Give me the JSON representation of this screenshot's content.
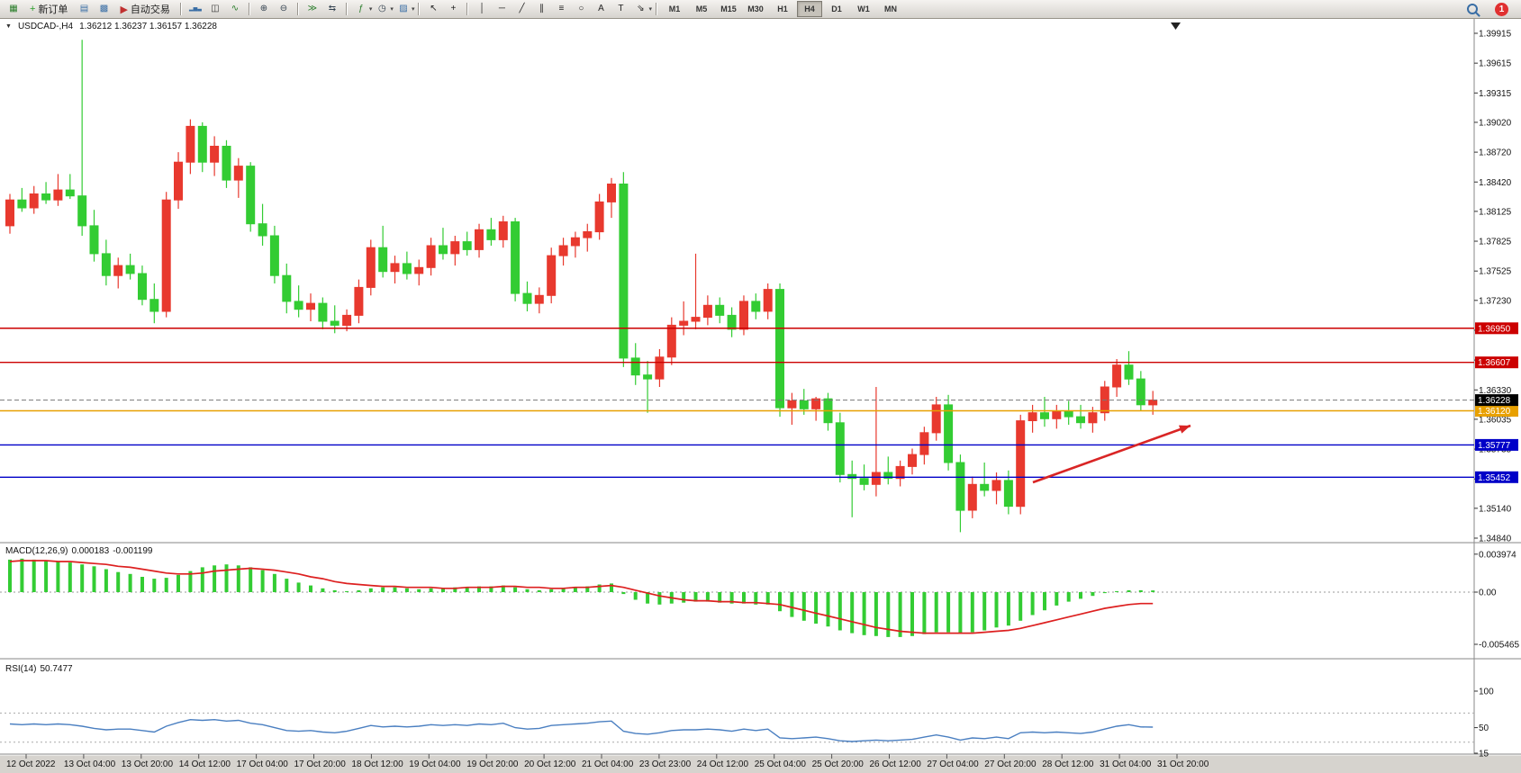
{
  "toolbar": {
    "new_order_label": "新订单",
    "autotrade_label": "自动交易",
    "notification_count": "1",
    "timeframes": [
      "M1",
      "M5",
      "M15",
      "M30",
      "H1",
      "H4",
      "D1",
      "W1",
      "MN"
    ],
    "active_timeframe": "H4",
    "items": [
      {
        "t": "i",
        "name": "new-chart-icon",
        "glyph": "▦",
        "c": "#2a7d2a"
      },
      {
        "t": "b",
        "name": "new-order-button",
        "glyph": "+",
        "gc": "#2a9d2a",
        "label_key": "new_order_label"
      },
      {
        "t": "i",
        "name": "profiles-icon",
        "glyph": "▤",
        "c": "#3a6ea5"
      },
      {
        "t": "i",
        "name": "charts-cascade-icon",
        "glyph": "▩",
        "c": "#3a6ea5"
      },
      {
        "t": "b",
        "name": "autotrade-button",
        "glyph": "▶",
        "gc": "#c03030",
        "label_key": "autotrade_label"
      },
      {
        "t": "s"
      },
      {
        "t": "i",
        "name": "bars-chart-icon",
        "glyph": "▂▅▃",
        "c": "#3a6ea5"
      },
      {
        "t": "i",
        "name": "candlestick-chart-icon",
        "glyph": "◫",
        "c": "#333333"
      },
      {
        "t": "i",
        "name": "line-chart-icon",
        "glyph": "∿",
        "c": "#2a7d2a"
      },
      {
        "t": "s"
      },
      {
        "t": "i",
        "name": "zoom-in-icon",
        "glyph": "⊕",
        "c": "#33414f"
      },
      {
        "t": "i",
        "name": "zoom-out-icon",
        "glyph": "⊖",
        "c": "#33414f"
      },
      {
        "t": "s"
      },
      {
        "t": "i",
        "name": "auto-scroll-icon",
        "glyph": "≫",
        "c": "#2a7d2a"
      },
      {
        "t": "i",
        "name": "chart-shift-icon",
        "glyph": "⇆",
        "c": "#33414f"
      },
      {
        "t": "s"
      },
      {
        "t": "i",
        "name": "indicators-icon",
        "glyph": "ƒ",
        "c": "#2a7d2a"
      },
      {
        "t": "c",
        "name": "indicators-caret-icon",
        "glyph": "▾"
      },
      {
        "t": "i",
        "name": "periods-icon",
        "glyph": "◷",
        "c": "#33414f"
      },
      {
        "t": "c",
        "name": "periods-caret-icon",
        "glyph": "▾"
      },
      {
        "t": "i",
        "name": "templates-icon",
        "glyph": "▨",
        "c": "#3a6ea5"
      },
      {
        "t": "c",
        "name": "templates-caret-icon",
        "glyph": "▾"
      },
      {
        "t": "s"
      },
      {
        "t": "i",
        "name": "cursor-icon",
        "glyph": "↖",
        "c": "#222222"
      },
      {
        "t": "i",
        "name": "crosshair-icon",
        "glyph": "+",
        "c": "#222222"
      },
      {
        "t": "s"
      },
      {
        "t": "i",
        "name": "vertical-line-icon",
        "glyph": "│",
        "c": "#222222"
      },
      {
        "t": "i",
        "name": "horizontal-line-icon",
        "glyph": "─",
        "c": "#222222"
      },
      {
        "t": "i",
        "name": "trendline-icon",
        "glyph": "╱",
        "c": "#222222"
      },
      {
        "t": "i",
        "name": "channel-icon",
        "glyph": "∥",
        "c": "#222222"
      },
      {
        "t": "i",
        "name": "fibonacci-icon",
        "glyph": "≡",
        "c": "#222222"
      },
      {
        "t": "i",
        "name": "shapes-icon",
        "glyph": "○",
        "c": "#222222"
      },
      {
        "t": "i",
        "name": "text-icon",
        "glyph": "A",
        "c": "#222222"
      },
      {
        "t": "i",
        "name": "label-icon",
        "glyph": "T",
        "c": "#222222"
      },
      {
        "t": "i",
        "name": "arrows-icon",
        "glyph": "⇘",
        "c": "#222222"
      },
      {
        "t": "c",
        "name": "arrows-caret-icon",
        "glyph": "▾"
      },
      {
        "t": "s"
      }
    ]
  },
  "chart_header": {
    "collapse_glyph": "▼",
    "symbol_period": "USDCAD-,H4",
    "ohlc": "1.36212 1.36237 1.36157 1.36228"
  },
  "chart_data": [
    {
      "type": "candlestick",
      "symbol": "USDCAD-",
      "timeframe": "H4",
      "bull_color": "#e8392e",
      "bear_color": "#33cc33",
      "ylim": [
        1.3484,
        1.39915
      ],
      "price_axis": [
        "1.39915",
        "1.39615",
        "1.39315",
        "1.39020",
        "1.38720",
        "1.38420",
        "1.38125",
        "1.37825",
        "1.37525",
        "1.37230",
        "1.36930",
        "1.36630",
        "1.36330",
        "1.36035",
        "1.35735",
        "1.35435",
        "1.35140",
        "1.34840"
      ],
      "time_axis": [
        "12 Oct 2022",
        "13 Oct 04:00",
        "13 Oct 20:00",
        "14 Oct 12:00",
        "17 Oct 04:00",
        "17 Oct 20:00",
        "18 Oct 12:00",
        "19 Oct 04:00",
        "19 Oct 20:00",
        "20 Oct 12:00",
        "21 Oct 04:00",
        "23 Oct 23:00",
        "24 Oct 12:00",
        "25 Oct 04:00",
        "25 Oct 20:00",
        "26 Oct 12:00",
        "27 Oct 04:00",
        "27 Oct 20:00",
        "28 Oct 12:00",
        "31 Oct 04:00",
        "31 Oct 20:00"
      ],
      "hlines": [
        {
          "value": 1.3695,
          "label": "1.36950",
          "color": "#cc0000"
        },
        {
          "value": 1.36607,
          "label": "1.36607",
          "color": "#cc0000"
        },
        {
          "value": 1.3612,
          "label": "1.36120",
          "color": "#e8a000"
        },
        {
          "value": 1.35777,
          "label": "1.35777",
          "color": "#0000c8"
        },
        {
          "value": 1.35452,
          "label": "1.35452",
          "color": "#0000c8"
        }
      ],
      "bid": {
        "value": 1.36228,
        "label": "1.36228",
        "line_color": "#777777",
        "badge_color": "#000000"
      },
      "arrow": {
        "from": [
          1147,
          515
        ],
        "to": [
          1322,
          452
        ],
        "color": "#d92525"
      },
      "candles": [
        [
          1.3798,
          1.383,
          1.379,
          1.3824
        ],
        [
          1.3824,
          1.3836,
          1.3812,
          1.3816
        ],
        [
          1.3816,
          1.3838,
          1.381,
          1.383
        ],
        [
          1.383,
          1.3842,
          1.382,
          1.3824
        ],
        [
          1.3824,
          1.385,
          1.3818,
          1.3834
        ],
        [
          1.3834,
          1.385,
          1.3825,
          1.3828
        ],
        [
          1.3828,
          1.3985,
          1.3788,
          1.3798
        ],
        [
          1.3798,
          1.3814,
          1.3762,
          1.377
        ],
        [
          1.377,
          1.3784,
          1.3738,
          1.3748
        ],
        [
          1.3748,
          1.3766,
          1.3735,
          1.3758
        ],
        [
          1.3758,
          1.377,
          1.3744,
          1.375
        ],
        [
          1.375,
          1.3758,
          1.3718,
          1.3724
        ],
        [
          1.3724,
          1.374,
          1.37,
          1.3712
        ],
        [
          1.3712,
          1.3832,
          1.3706,
          1.3824
        ],
        [
          1.3824,
          1.3872,
          1.3815,
          1.3862
        ],
        [
          1.3862,
          1.3905,
          1.385,
          1.3898
        ],
        [
          1.3898,
          1.3902,
          1.3852,
          1.3862
        ],
        [
          1.3862,
          1.3888,
          1.3848,
          1.3878
        ],
        [
          1.3878,
          1.3884,
          1.3836,
          1.3844
        ],
        [
          1.3844,
          1.3866,
          1.3826,
          1.3858
        ],
        [
          1.3858,
          1.3862,
          1.3792,
          1.38
        ],
        [
          1.38,
          1.382,
          1.3778,
          1.3788
        ],
        [
          1.3788,
          1.3798,
          1.374,
          1.3748
        ],
        [
          1.3748,
          1.376,
          1.371,
          1.3722
        ],
        [
          1.3722,
          1.3738,
          1.3706,
          1.3714
        ],
        [
          1.3714,
          1.373,
          1.3702,
          1.372
        ],
        [
          1.372,
          1.3726,
          1.3694,
          1.3702
        ],
        [
          1.3702,
          1.3718,
          1.369,
          1.3698
        ],
        [
          1.3698,
          1.3714,
          1.3692,
          1.3708
        ],
        [
          1.3708,
          1.3744,
          1.37,
          1.3736
        ],
        [
          1.3736,
          1.3784,
          1.3728,
          1.3776
        ],
        [
          1.3776,
          1.3798,
          1.3746,
          1.3752
        ],
        [
          1.3752,
          1.3768,
          1.374,
          1.376
        ],
        [
          1.376,
          1.3772,
          1.3744,
          1.375
        ],
        [
          1.375,
          1.3764,
          1.3738,
          1.3756
        ],
        [
          1.3756,
          1.3786,
          1.3748,
          1.3778
        ],
        [
          1.3778,
          1.3796,
          1.3764,
          1.377
        ],
        [
          1.377,
          1.3788,
          1.3758,
          1.3782
        ],
        [
          1.3782,
          1.3792,
          1.3768,
          1.3774
        ],
        [
          1.3774,
          1.38,
          1.3766,
          1.3794
        ],
        [
          1.3794,
          1.3806,
          1.3778,
          1.3784
        ],
        [
          1.3784,
          1.3808,
          1.3776,
          1.3802
        ],
        [
          1.3802,
          1.3806,
          1.3722,
          1.373
        ],
        [
          1.373,
          1.3742,
          1.3712,
          1.372
        ],
        [
          1.372,
          1.3736,
          1.371,
          1.3728
        ],
        [
          1.3728,
          1.3776,
          1.372,
          1.3768
        ],
        [
          1.3768,
          1.3786,
          1.3758,
          1.3778
        ],
        [
          1.3778,
          1.3792,
          1.3766,
          1.3786
        ],
        [
          1.3786,
          1.38,
          1.3772,
          1.3792
        ],
        [
          1.3792,
          1.383,
          1.3784,
          1.3822
        ],
        [
          1.3822,
          1.3846,
          1.3806,
          1.384
        ],
        [
          1.384,
          1.3852,
          1.3656,
          1.3665
        ],
        [
          1.3665,
          1.368,
          1.3638,
          1.3648
        ],
        [
          1.3648,
          1.3662,
          1.361,
          1.3644
        ],
        [
          1.3644,
          1.3674,
          1.3636,
          1.3666
        ],
        [
          1.3666,
          1.3706,
          1.3658,
          1.3698
        ],
        [
          1.3698,
          1.3722,
          1.3688,
          1.3702
        ],
        [
          1.3702,
          1.377,
          1.3694,
          1.3706
        ],
        [
          1.3706,
          1.3728,
          1.3698,
          1.3718
        ],
        [
          1.3718,
          1.3726,
          1.37,
          1.3708
        ],
        [
          1.3708,
          1.3716,
          1.3686,
          1.3694
        ],
        [
          1.3694,
          1.3728,
          1.3688,
          1.3722
        ],
        [
          1.3722,
          1.373,
          1.3704,
          1.3712
        ],
        [
          1.3712,
          1.374,
          1.3704,
          1.3734
        ],
        [
          1.3734,
          1.374,
          1.3606,
          1.3615
        ],
        [
          1.3615,
          1.363,
          1.3598,
          1.3622
        ],
        [
          1.3622,
          1.3634,
          1.3608,
          1.3614
        ],
        [
          1.3614,
          1.3626,
          1.3602,
          1.3624
        ],
        [
          1.3624,
          1.363,
          1.3592,
          1.36
        ],
        [
          1.36,
          1.361,
          1.354,
          1.3548
        ],
        [
          1.3548,
          1.3562,
          1.3505,
          1.3544
        ],
        [
          1.3544,
          1.3558,
          1.3532,
          1.3538
        ],
        [
          1.3538,
          1.3636,
          1.3526,
          1.355
        ],
        [
          1.355,
          1.3566,
          1.3538,
          1.3544
        ],
        [
          1.3544,
          1.3562,
          1.3536,
          1.3556
        ],
        [
          1.3556,
          1.3574,
          1.3548,
          1.3568
        ],
        [
          1.3568,
          1.3596,
          1.3558,
          1.359
        ],
        [
          1.359,
          1.3626,
          1.3582,
          1.3618
        ],
        [
          1.3618,
          1.3628,
          1.3552,
          1.356
        ],
        [
          1.356,
          1.3568,
          1.349,
          1.3512
        ],
        [
          1.3512,
          1.3546,
          1.3504,
          1.3538
        ],
        [
          1.3538,
          1.356,
          1.3526,
          1.3532
        ],
        [
          1.3532,
          1.355,
          1.3518,
          1.3542
        ],
        [
          1.3542,
          1.3552,
          1.3508,
          1.3516
        ],
        [
          1.3516,
          1.3608,
          1.3508,
          1.3602
        ],
        [
          1.3602,
          1.3618,
          1.359,
          1.361
        ],
        [
          1.361,
          1.3626,
          1.3596,
          1.3604
        ],
        [
          1.3604,
          1.3618,
          1.3594,
          1.3612
        ],
        [
          1.3612,
          1.3622,
          1.3598,
          1.3606
        ],
        [
          1.3606,
          1.3618,
          1.3594,
          1.36
        ],
        [
          1.36,
          1.3616,
          1.359,
          1.361
        ],
        [
          1.361,
          1.3642,
          1.3602,
          1.3636
        ],
        [
          1.3636,
          1.3664,
          1.3626,
          1.3658
        ],
        [
          1.3658,
          1.3672,
          1.3638,
          1.3644
        ],
        [
          1.3644,
          1.3652,
          1.3612,
          1.3618
        ],
        [
          1.3618,
          1.3632,
          1.3608,
          1.36228
        ]
      ]
    },
    {
      "type": "line",
      "name": "MACD",
      "label": "MACD(12,26,9)",
      "value_main": "0.000183",
      "value_signal": "-0.001199",
      "axis": [
        "0.003974",
        "0.00",
        "-0.005465"
      ],
      "histogram_color": "#33cc33",
      "signal_color": "#dd2020",
      "histogram": [
        0.0034,
        0.0035,
        0.0034,
        0.0033,
        0.0032,
        0.0031,
        0.0029,
        0.0027,
        0.0024,
        0.0021,
        0.0019,
        0.0016,
        0.0014,
        0.0015,
        0.0018,
        0.0022,
        0.0026,
        0.0028,
        0.0029,
        0.0028,
        0.0026,
        0.0023,
        0.0019,
        0.0014,
        0.001,
        0.0007,
        0.0004,
        0.0002,
        0.0001,
        0.0002,
        0.0004,
        0.0005,
        0.0005,
        0.0004,
        0.0003,
        0.0004,
        0.0004,
        0.0005,
        0.0005,
        0.0006,
        0.0006,
        0.0007,
        0.0005,
        0.0003,
        0.0002,
        0.0003,
        0.0004,
        0.0005,
        0.0006,
        0.0008,
        0.0009,
        -0.0002,
        -0.0008,
        -0.0012,
        -0.0013,
        -0.0012,
        -0.0011,
        -0.001,
        -0.001,
        -0.0011,
        -0.0012,
        -0.0012,
        -0.0013,
        -0.0013,
        -0.002,
        -0.0026,
        -0.003,
        -0.0033,
        -0.0036,
        -0.004,
        -0.0043,
        -0.0045,
        -0.0046,
        -0.0047,
        -0.0047,
        -0.0046,
        -0.0044,
        -0.0042,
        -0.0042,
        -0.0043,
        -0.0042,
        -0.004,
        -0.0037,
        -0.0035,
        -0.003,
        -0.0024,
        -0.0019,
        -0.0014,
        -0.001,
        -0.0007,
        -0.0004,
        -0.0001,
        0.0001,
        0.0002,
        0.0002,
        0.000183
      ],
      "signal": [
        0.0032,
        0.0033,
        0.0033,
        0.0033,
        0.0032,
        0.0032,
        0.0031,
        0.003,
        0.0029,
        0.0027,
        0.0026,
        0.0024,
        0.0022,
        0.002,
        0.0019,
        0.0019,
        0.002,
        0.0022,
        0.0023,
        0.0024,
        0.0025,
        0.0024,
        0.0023,
        0.0021,
        0.0019,
        0.0016,
        0.0014,
        0.0011,
        0.0009,
        0.0008,
        0.0007,
        0.0006,
        0.0006,
        0.0005,
        0.0005,
        0.0005,
        0.0004,
        0.0004,
        0.0005,
        0.0005,
        0.0005,
        0.0006,
        0.0006,
        0.0005,
        0.0005,
        0.0004,
        0.0004,
        0.0005,
        0.0005,
        0.0006,
        0.0007,
        0.0005,
        0.0002,
        -0.0001,
        -0.0004,
        -0.0006,
        -0.0008,
        -0.0009,
        -0.0009,
        -0.001,
        -0.001,
        -0.0011,
        -0.0011,
        -0.0012,
        -0.0013,
        -0.0016,
        -0.0019,
        -0.0022,
        -0.0025,
        -0.0028,
        -0.0031,
        -0.0034,
        -0.0037,
        -0.0039,
        -0.0041,
        -0.0042,
        -0.0043,
        -0.0043,
        -0.0043,
        -0.0043,
        -0.0043,
        -0.0042,
        -0.0041,
        -0.004,
        -0.0038,
        -0.0035,
        -0.0032,
        -0.0029,
        -0.0026,
        -0.0023,
        -0.002,
        -0.0017,
        -0.0015,
        -0.0013,
        -0.0012,
        -0.001199
      ]
    },
    {
      "type": "line",
      "name": "RSI",
      "label": "RSI(14)",
      "value": "50.7477",
      "axis": [
        "100",
        "50",
        "15"
      ],
      "levels": [
        70,
        30
      ],
      "line_color": "#4a7fc1",
      "line": [
        55,
        54,
        55,
        54,
        55,
        54,
        52,
        49,
        47,
        48,
        48,
        46,
        44,
        52,
        57,
        61,
        60,
        61,
        59,
        60,
        56,
        54,
        50,
        46,
        45,
        46,
        44,
        43,
        45,
        49,
        53,
        51,
        52,
        51,
        52,
        54,
        53,
        54,
        53,
        55,
        54,
        56,
        50,
        48,
        49,
        53,
        54,
        55,
        56,
        58,
        59,
        45,
        42,
        41,
        43,
        46,
        47,
        47,
        48,
        47,
        45,
        48,
        46,
        48,
        36,
        35,
        36,
        37,
        35,
        32,
        31,
        32,
        33,
        32,
        33,
        34,
        37,
        40,
        37,
        33,
        36,
        35,
        37,
        35,
        43,
        44,
        43,
        44,
        43,
        42,
        44,
        48,
        52,
        54,
        51,
        50.7
      ]
    }
  ]
}
